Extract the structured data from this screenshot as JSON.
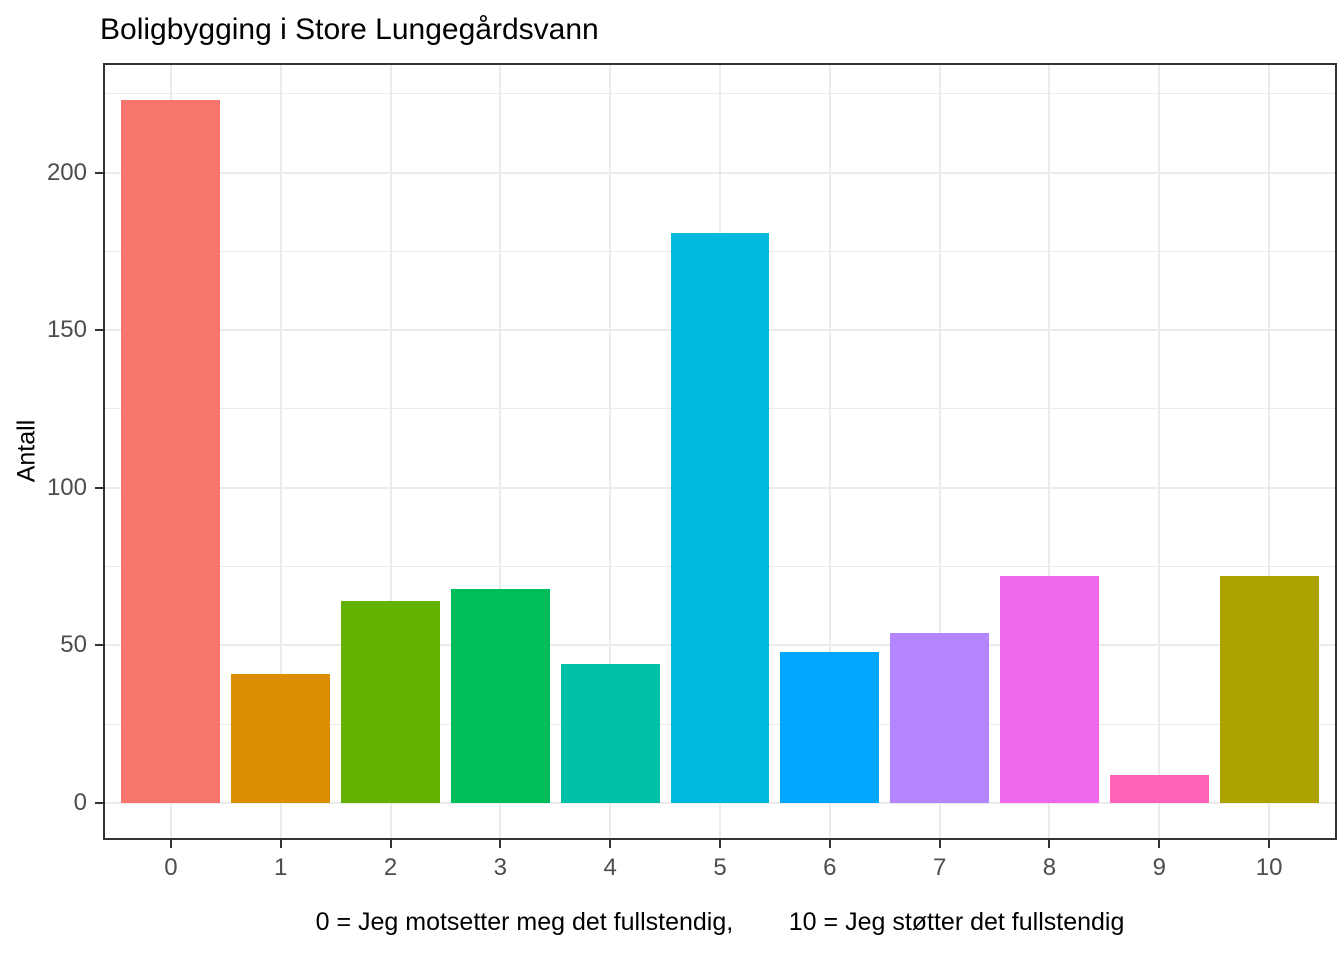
{
  "title": "Boligbygging i Store Lungegårdsvann",
  "y_axis": {
    "label": "Antall"
  },
  "x_axis": {
    "label": "0 = Jeg motsetter meg det fullstendig,        10 = Jeg støtter det fullstendig"
  },
  "chart_data": {
    "type": "bar",
    "title": "Boligbygging i Store Lungegårdsvann",
    "categories": [
      "0",
      "1",
      "2",
      "3",
      "4",
      "5",
      "6",
      "7",
      "8",
      "9",
      "10"
    ],
    "values": [
      223,
      41,
      64,
      68,
      44,
      181,
      48,
      54,
      72,
      9,
      72
    ],
    "bar_colors": [
      "#F8766D",
      "#DB8E00",
      "#64B200",
      "#00BD5C",
      "#00C1A7",
      "#00BADE",
      "#00A6FF",
      "#B385FF",
      "#EF67EB",
      "#FF63B6",
      "#AEA200"
    ],
    "xlabel": "0 = Jeg motsetter meg det fullstendig,        10 = Jeg støtter det fullstendig",
    "ylabel": "Antall",
    "ylim": [
      0,
      223
    ],
    "y_ticks_major": [
      0,
      50,
      100,
      150,
      200
    ],
    "y_ticks_minor": [
      25,
      75,
      125,
      175,
      225
    ],
    "y_expand_fraction": 0.05,
    "x_expand_units": 0.6,
    "bar_width_fraction": 0.9,
    "grid": true,
    "legend_position": "none",
    "colors": {
      "panel_background": "#ffffff",
      "panel_border": "#333333",
      "gridline": "#ebebeb",
      "tick_mark": "#333333",
      "tick_label": "#4d4d4d",
      "title_text": "#000000",
      "axis_title_text": "#000000"
    }
  }
}
